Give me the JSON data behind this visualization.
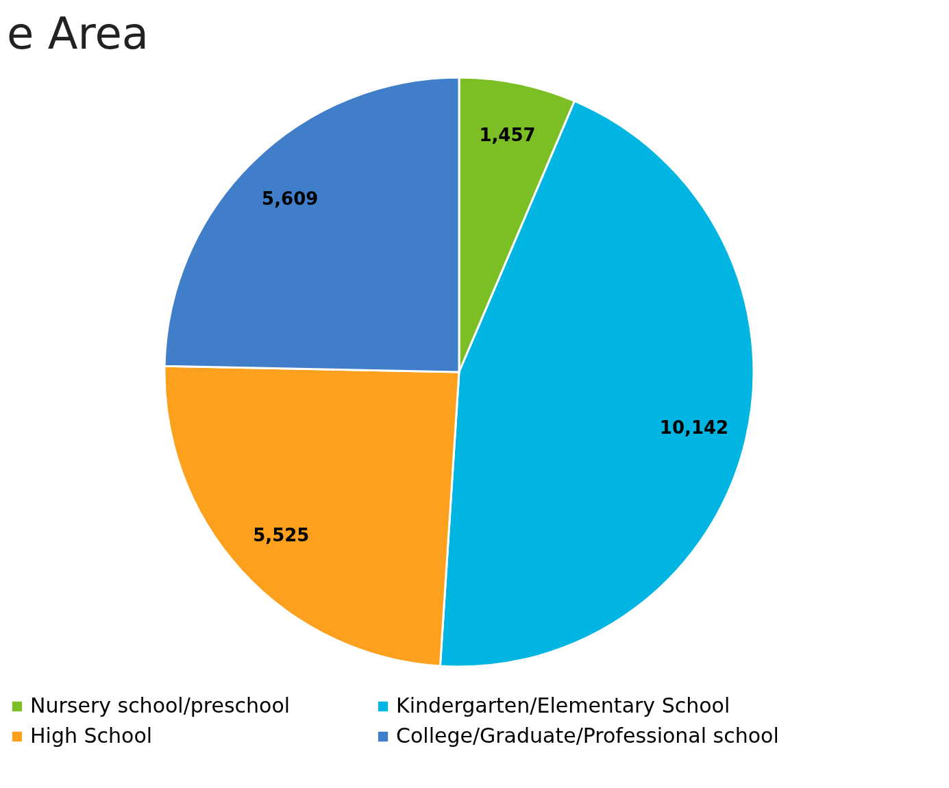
{
  "chart_data": {
    "type": "pie",
    "title": "e Area",
    "categories": [
      "Nursery school/preschool",
      "Kindergarten/Elementary School",
      "High School",
      "College/Graduate/Professional school"
    ],
    "values": [
      1457,
      10142,
      5525,
      5609
    ],
    "colors": [
      "#7cbf24",
      "#00b5e2",
      "#fda01d",
      "#407ec9"
    ],
    "value_labels": [
      "1,457",
      "10,142",
      "5,525",
      "5,609"
    ],
    "legend": "bottom"
  }
}
